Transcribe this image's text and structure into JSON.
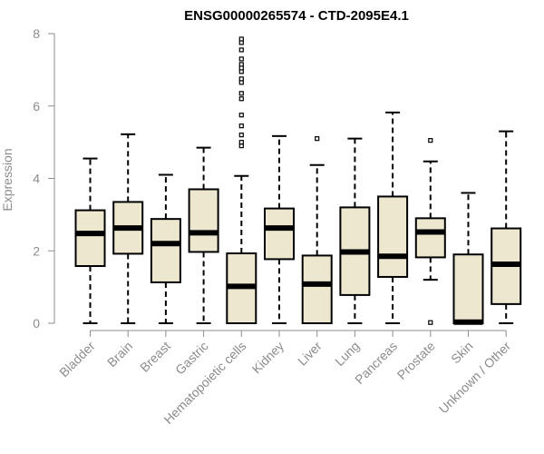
{
  "chart_data": {
    "type": "box",
    "title": "ENSG00000265574 - CTD-2095E4.1",
    "ylabel": "Expression",
    "xlabel": "",
    "ylim": [
      0,
      8
    ],
    "yticks": [
      "0",
      "2",
      "4",
      "6",
      "8"
    ],
    "grid": false,
    "colors": {
      "box_fill": "#ede7d0",
      "box_stroke": "#000000",
      "axis": "#8c8c8c",
      "title": "#000000"
    },
    "categories": [
      "Bladder",
      "Brain",
      "Breast",
      "Gastric",
      "Hematopoietic cells",
      "Kidney",
      "Liver",
      "Lung",
      "Pancreas",
      "Prostate",
      "Skin",
      "Unknown / Other"
    ],
    "boxes": [
      {
        "whisker_low": 0,
        "q1": 1.58,
        "median": 2.48,
        "q3": 3.12,
        "whisker_high": 4.55,
        "outliers": []
      },
      {
        "whisker_low": 0,
        "q1": 1.92,
        "median": 2.63,
        "q3": 3.35,
        "whisker_high": 5.22,
        "outliers": []
      },
      {
        "whisker_low": 0,
        "q1": 1.13,
        "median": 2.2,
        "q3": 2.88,
        "whisker_high": 4.1,
        "outliers": []
      },
      {
        "whisker_low": 0,
        "q1": 1.97,
        "median": 2.5,
        "q3": 3.7,
        "whisker_high": 4.85,
        "outliers": []
      },
      {
        "whisker_low": 0,
        "q1": 0,
        "median": 1.02,
        "q3": 1.93,
        "whisker_high": 4.07,
        "outliers": [
          4.9,
          5.0,
          5.2,
          5.45,
          5.75,
          6.2,
          6.35,
          6.65,
          6.75,
          6.95,
          7.05,
          7.15,
          7.3,
          7.55,
          7.75,
          7.85
        ]
      },
      {
        "whisker_low": 0,
        "q1": 1.77,
        "median": 2.63,
        "q3": 3.17,
        "whisker_high": 5.17,
        "outliers": []
      },
      {
        "whisker_low": 0,
        "q1": 0,
        "median": 1.08,
        "q3": 1.87,
        "whisker_high": 4.37,
        "outliers": [
          5.1
        ]
      },
      {
        "whisker_low": 0,
        "q1": 0.78,
        "median": 1.97,
        "q3": 3.2,
        "whisker_high": 5.1,
        "outliers": []
      },
      {
        "whisker_low": 0,
        "q1": 1.28,
        "median": 1.85,
        "q3": 3.5,
        "whisker_high": 5.82,
        "outliers": []
      },
      {
        "whisker_low": 1.2,
        "q1": 1.82,
        "median": 2.52,
        "q3": 2.9,
        "whisker_high": 4.47,
        "outliers": [
          0.02,
          5.05
        ]
      },
      {
        "whisker_low": 0,
        "q1": 0,
        "median": 0.03,
        "q3": 1.9,
        "whisker_high": 3.6,
        "outliers": []
      },
      {
        "whisker_low": 0,
        "q1": 0.53,
        "median": 1.63,
        "q3": 2.62,
        "whisker_high": 5.3,
        "outliers": []
      }
    ]
  }
}
